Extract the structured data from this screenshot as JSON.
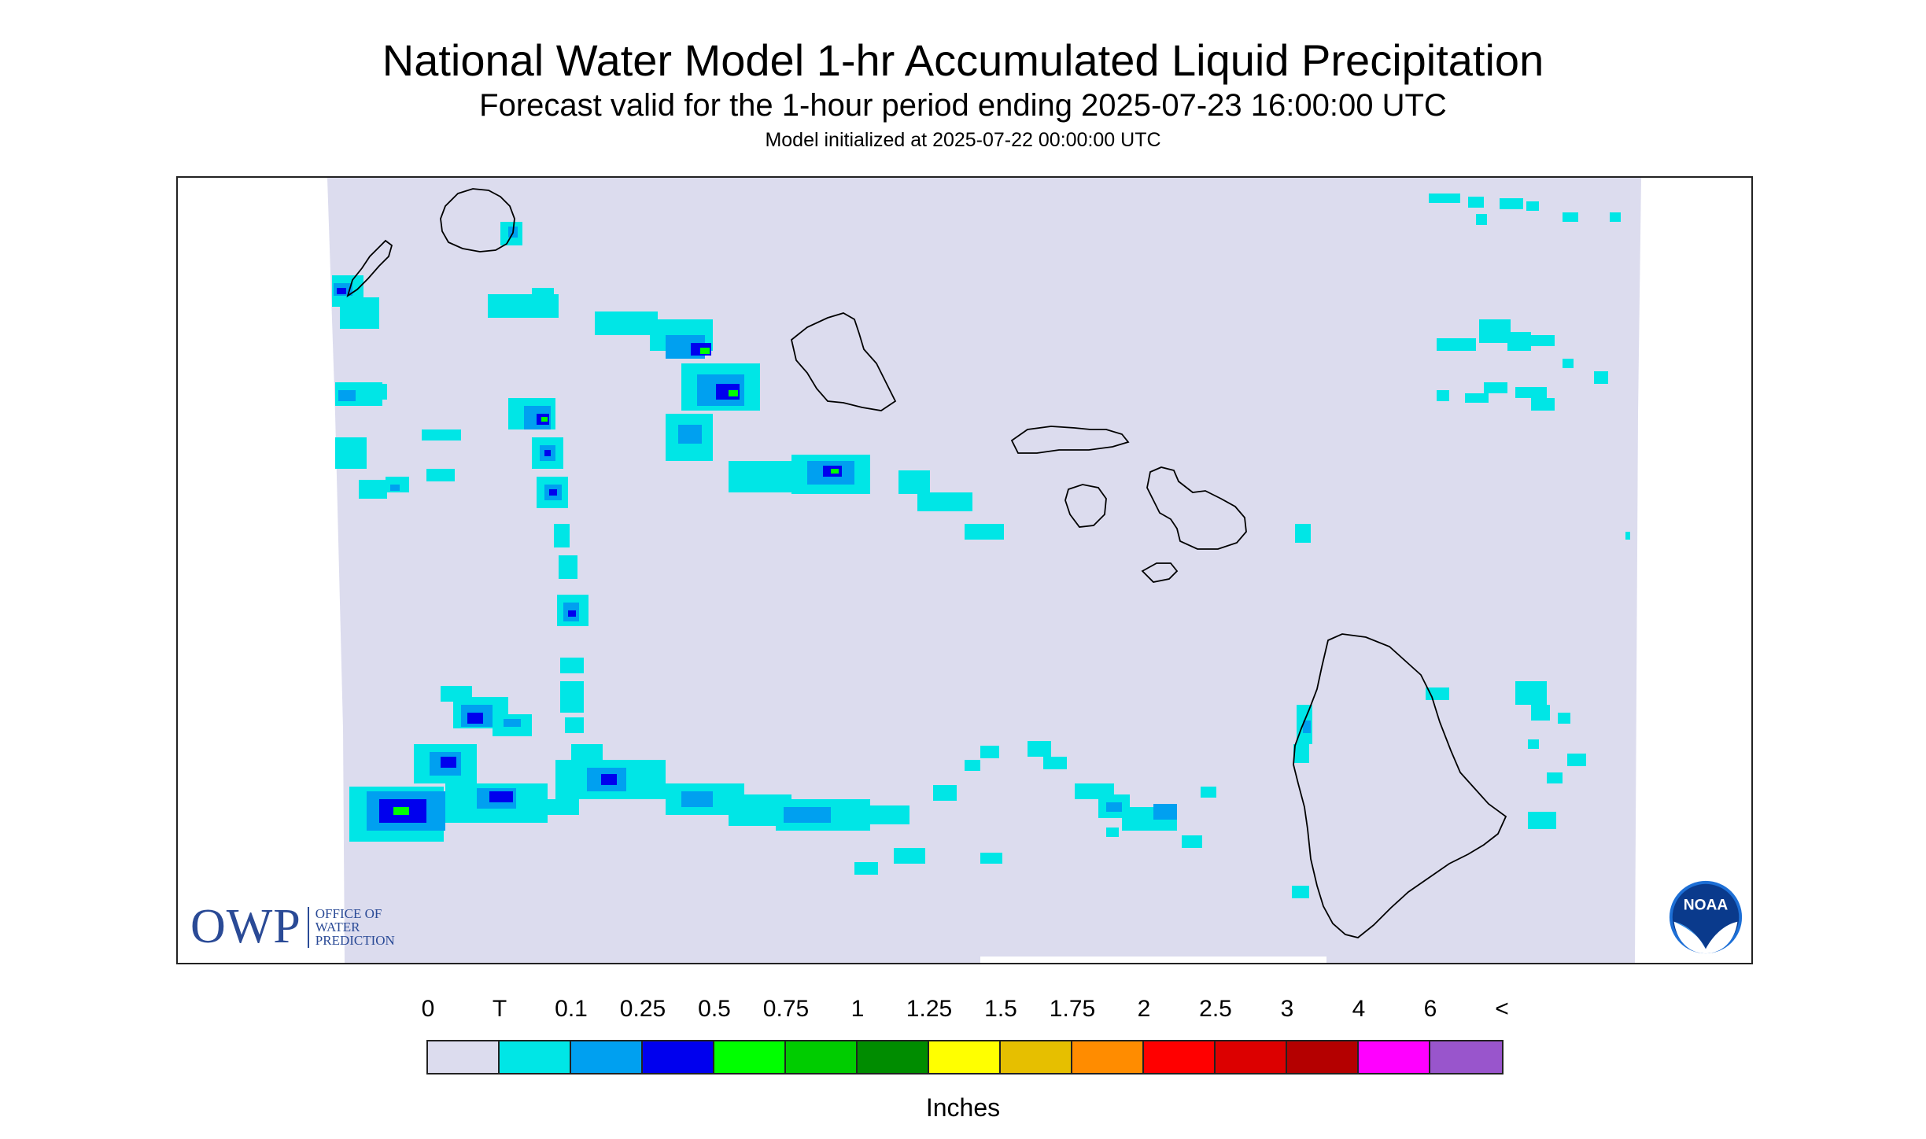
{
  "title": "National Water Model 1-hr Accumulated Liquid Precipitation",
  "subtitle": "Forecast valid for the 1-hour period ending 2025-07-23 16:00:00 UTC",
  "init_line": "Model initialized at 2025-07-22 00:00:00 UTC",
  "map": {
    "region": "Hawaii",
    "background_color": "#dcdcee",
    "coast_color": "#000000",
    "islands": [
      "Niihau",
      "Kauai",
      "Oahu",
      "Molokai",
      "Lanai",
      "Maui",
      "Kahoolawe",
      "Hawaii"
    ]
  },
  "legend": {
    "labels": [
      "0",
      "T",
      "0.1",
      "0.25",
      "0.5",
      "0.75",
      "1",
      "1.25",
      "1.5",
      "1.75",
      "2",
      "2.5",
      "3",
      "4",
      "6",
      "<"
    ],
    "colors": [
      "#dcdcee",
      "#00e6e6",
      "#00a0f0",
      "#0000ee",
      "#00ff00",
      "#00cc00",
      "#008c00",
      "#ffff00",
      "#e6bf00",
      "#ff8c00",
      "#ff0000",
      "#dc0000",
      "#b40000",
      "#ff00ff",
      "#9955cc"
    ],
    "units": "Inches"
  },
  "logos": {
    "owp_big": "OWP",
    "owp_line1": "OFFICE OF",
    "owp_line2": "WATER",
    "owp_line3": "PREDICTION",
    "noaa_text": "NOAA"
  }
}
